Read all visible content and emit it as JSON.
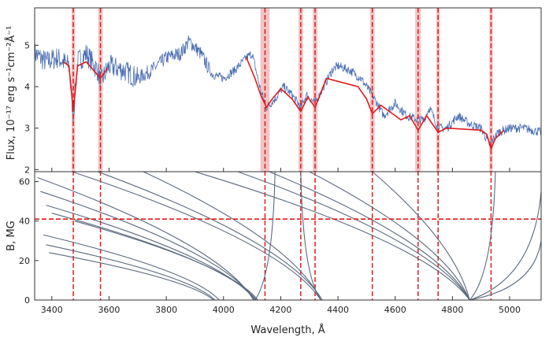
{
  "chart_data": [
    {
      "type": "line",
      "panel": "top",
      "ylabel": "Flux, 10⁻¹⁷ erg s⁻¹cm⁻²Å⁻¹",
      "xlim": [
        3340,
        5110
      ],
      "ylim": [
        1.95,
        5.9
      ],
      "yticks": [
        "2",
        "3",
        "4",
        "5"
      ],
      "xticks": [
        3400,
        3600,
        3800,
        4000,
        4200,
        4400,
        4600,
        4800,
        5000
      ],
      "colors": {
        "observed": "#4a6eb3",
        "model": "#e41a1c",
        "band": "#f4c4c4",
        "marker": "#e41a1c"
      },
      "series": [
        {
          "name": "observed",
          "x": [
            3340,
            3380,
            3420,
            3460,
            3475,
            3490,
            3520,
            3560,
            3570,
            3600,
            3650,
            3700,
            3750,
            3800,
            3850,
            3880,
            3920,
            3960,
            4000,
            4040,
            4080,
            4100,
            4130,
            4150,
            4180,
            4210,
            4240,
            4270,
            4290,
            4320,
            4350,
            4380,
            4400,
            4440,
            4480,
            4520,
            4560,
            4600,
            4640,
            4680,
            4700,
            4720,
            4750,
            4780,
            4820,
            4860,
            4900,
            4930,
            4960,
            5000,
            5050,
            5110
          ],
          "y": [
            4.8,
            4.6,
            4.7,
            4.5,
            3.3,
            4.6,
            4.8,
            4.4,
            4.1,
            4.5,
            4.4,
            4.2,
            4.4,
            4.7,
            4.8,
            5.1,
            4.8,
            4.3,
            4.2,
            4.4,
            4.7,
            4.8,
            3.9,
            3.5,
            3.7,
            4.0,
            3.8,
            3.5,
            3.8,
            3.6,
            4.0,
            4.4,
            4.5,
            4.4,
            4.2,
            3.8,
            3.3,
            3.6,
            3.3,
            3.2,
            3.2,
            3.5,
            3.0,
            3.0,
            3.3,
            3.1,
            3.0,
            2.6,
            2.9,
            3.0,
            3.0,
            2.9
          ]
        },
        {
          "name": "model",
          "x": [
            3440,
            3460,
            3475,
            3490,
            3520,
            3545,
            3570,
            3595,
            4080,
            4110,
            4130,
            4150,
            4170,
            4200,
            4240,
            4270,
            4295,
            4320,
            4360,
            4470,
            4500,
            4520,
            4550,
            4580,
            4620,
            4650,
            4680,
            4710,
            4750,
            4780,
            4900,
            4920,
            4935,
            4950,
            4980
          ],
          "y": [
            4.6,
            4.5,
            3.4,
            4.5,
            4.6,
            4.4,
            4.2,
            4.45,
            4.7,
            4.2,
            3.8,
            3.5,
            3.7,
            3.95,
            3.7,
            3.4,
            3.75,
            3.5,
            4.2,
            4.0,
            3.7,
            3.35,
            3.55,
            3.4,
            3.2,
            3.3,
            2.95,
            3.3,
            2.9,
            3.0,
            2.95,
            2.85,
            2.5,
            2.75,
            2.95
          ]
        }
      ],
      "annotations": [
        {
          "x": 3475,
          "band": 6
        },
        {
          "x": 3570,
          "band": 8
        },
        {
          "x": 4145,
          "band": 16
        },
        {
          "x": 4270,
          "band": 8
        },
        {
          "x": 4320,
          "band": 8
        },
        {
          "x": 4520,
          "band": 8
        },
        {
          "x": 4680,
          "band": 10
        },
        {
          "x": 4750,
          "band": 6
        },
        {
          "x": 4935,
          "band": 6
        }
      ]
    },
    {
      "type": "line",
      "panel": "bottom",
      "xlabel": "Wavelength, Å",
      "ylabel": "B, MG",
      "xlim": [
        3340,
        5110
      ],
      "ylim": [
        0,
        65
      ],
      "yticks": [
        "0",
        "20",
        "40",
        "60"
      ],
      "xticks": [
        3400,
        3600,
        3800,
        4000,
        4200,
        4400,
        4600,
        4800,
        5000
      ],
      "hline": 41,
      "colors": {
        "tracks": "#5b6a80",
        "marker": "#e41a1c"
      },
      "tracks": [
        {
          "x0": 3970,
          "y0": 0,
          "x1": 3380,
          "y1": 28
        },
        {
          "x0": 3985,
          "y0": 0,
          "x1": 3370,
          "y1": 33
        },
        {
          "x0": 3965,
          "y0": 0,
          "x1": 3390,
          "y1": 24
        },
        {
          "x0": 4110,
          "y0": 0,
          "x1": 3380,
          "y1": 48
        },
        {
          "x0": 4110,
          "y0": 0,
          "x1": 3360,
          "y1": 55
        },
        {
          "x0": 4115,
          "y0": 0,
          "x1": 3400,
          "y1": 44
        },
        {
          "x0": 4105,
          "y0": 0,
          "x1": 3350,
          "y1": 62
        },
        {
          "x0": 4120,
          "y0": 0,
          "x1": 3480,
          "y1": 40
        },
        {
          "x0": 4340,
          "y0": 0,
          "x1": 3470,
          "y1": 65
        },
        {
          "x0": 4340,
          "y0": 0,
          "x1": 3720,
          "y1": 65
        },
        {
          "x0": 4345,
          "y0": 0,
          "x1": 3560,
          "y1": 65
        },
        {
          "x0": 4860,
          "y0": 0,
          "x1": 3900,
          "y1": 65
        },
        {
          "x0": 4860,
          "y0": 0,
          "x1": 4050,
          "y1": 65
        },
        {
          "x0": 4860,
          "y0": 0,
          "x1": 4160,
          "y1": 65
        },
        {
          "x0": 4860,
          "y0": 0,
          "x1": 4300,
          "y1": 65
        },
        {
          "x0": 4860,
          "y0": 0,
          "x1": 4520,
          "y1": 65
        }
      ],
      "upturns": [
        {
          "x0": 4110,
          "y0": 0,
          "x1": 4180,
          "y1": 65
        },
        {
          "x0": 4340,
          "y0": 0,
          "x1": 4270,
          "y1": 65
        },
        {
          "x0": 4860,
          "y0": 0,
          "x1": 4950,
          "y1": 65
        },
        {
          "x0": 4860,
          "y0": 0,
          "x1": 5110,
          "y1": 30
        },
        {
          "x0": 4860,
          "y0": 0,
          "x1": 5110,
          "y1": 55
        }
      ]
    }
  ]
}
